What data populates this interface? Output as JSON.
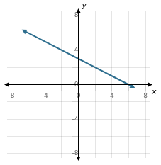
{
  "chart_data": {
    "type": "line",
    "x": [
      -6,
      6
    ],
    "values": [
      6,
      0
    ],
    "color": "#2e6e8e",
    "xlabel": "x",
    "ylabel": "y",
    "xlim": [
      -8.5,
      8.5
    ],
    "ylim": [
      -8.5,
      8.5
    ],
    "xticks": [
      -8,
      {
        "value": -6,
        "label": null
      },
      -4,
      {
        "value": -2,
        "label": null
      },
      0,
      {
        "value": 2,
        "label": null
      },
      4,
      {
        "value": 6,
        "label": null
      },
      8
    ],
    "yticks": [
      -8,
      {
        "value": -6,
        "label": null
      },
      -4,
      {
        "value": -2,
        "label": null
      },
      0,
      {
        "value": 2,
        "label": null
      },
      4,
      {
        "value": 6,
        "label": null
      },
      8
    ],
    "grid": true
  }
}
